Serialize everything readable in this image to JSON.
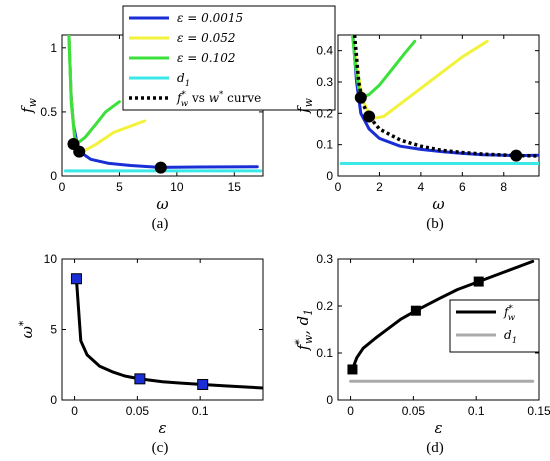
{
  "chart_data": [
    {
      "panel": "(a)",
      "type": "line",
      "xlabel": "ω",
      "ylabel": "f_w",
      "xlim": [
        0,
        17.5
      ],
      "ylim": [
        0,
        1.1
      ],
      "xticks": [
        0,
        5,
        10,
        15
      ],
      "yticks": [
        0,
        0.5,
        1
      ],
      "legend_position": "top-right",
      "legend": [
        {
          "text": "ε = 0.0015",
          "color": "#1a2ed6",
          "style": "solid"
        },
        {
          "text": "ε = 0.052",
          "color": "#f2f23a",
          "style": "solid"
        },
        {
          "text": "ε = 0.102",
          "color": "#3be03b",
          "style": "solid"
        },
        {
          "text": "d1",
          "color": "#3ae8e8",
          "style": "solid"
        },
        {
          "text": "f*w vs w* curve",
          "color": "#000000",
          "style": "dotted"
        }
      ],
      "series": [
        {
          "name": "ε = 0.0015",
          "color": "#1a2ed6",
          "points": [
            [
              0.6,
              1.1
            ],
            [
              0.8,
              0.62
            ],
            [
              1.0,
              0.4
            ],
            [
              1.3,
              0.26
            ],
            [
              1.7,
              0.18
            ],
            [
              2.5,
              0.13
            ],
            [
              4,
              0.1
            ],
            [
              6,
              0.082
            ],
            [
              8.5,
              0.067
            ],
            [
              12,
              0.07
            ],
            [
              17,
              0.072
            ]
          ]
        },
        {
          "name": "ε = 0.052",
          "color": "#f2f23a",
          "points": [
            [
              0.6,
              1.1
            ],
            [
              0.8,
              0.6
            ],
            [
              1.1,
              0.3
            ],
            [
              1.6,
              0.2
            ],
            [
              2,
              0.2
            ],
            [
              3,
              0.25
            ],
            [
              4.5,
              0.34
            ],
            [
              7.2,
              0.43
            ]
          ]
        },
        {
          "name": "ε = 0.102",
          "color": "#3be03b",
          "points": [
            [
              0.6,
              1.1
            ],
            [
              0.8,
              0.58
            ],
            [
              1.1,
              0.3
            ],
            [
              1.4,
              0.26
            ],
            [
              2,
              0.3
            ],
            [
              3,
              0.41
            ],
            [
              3.8,
              0.5
            ],
            [
              5,
              0.58
            ]
          ]
        },
        {
          "name": "d1",
          "color": "#3ae8e8",
          "points": [
            [
              0.3,
              0.04
            ],
            [
              17.3,
              0.04
            ]
          ]
        }
      ],
      "markers": [
        [
          1.0,
          0.25
        ],
        [
          1.5,
          0.19
        ],
        [
          8.6,
          0.065
        ]
      ]
    },
    {
      "panel": "(b)",
      "type": "line",
      "xlabel": "ω",
      "ylabel": "f_w",
      "xlim": [
        0,
        9.7
      ],
      "ylim": [
        0,
        0.45
      ],
      "xticks": [
        0,
        2,
        4,
        6,
        8
      ],
      "yticks": [
        0,
        0.1,
        0.2,
        0.3,
        0.4
      ],
      "series": [
        {
          "name": "ε = 0.0015",
          "color": "#1a2ed6",
          "points": [
            [
              0.72,
              0.45
            ],
            [
              0.9,
              0.3
            ],
            [
              1.1,
              0.2
            ],
            [
              1.5,
              0.15
            ],
            [
              2,
              0.12
            ],
            [
              3,
              0.095
            ],
            [
              4,
              0.085
            ],
            [
              5,
              0.078
            ],
            [
              6,
              0.072
            ],
            [
              7,
              0.068
            ],
            [
              8.6,
              0.065
            ],
            [
              9.7,
              0.066
            ]
          ]
        },
        {
          "name": "ε = 0.052",
          "color": "#f2f23a",
          "points": [
            [
              0.7,
              0.45
            ],
            [
              0.9,
              0.35
            ],
            [
              1.2,
              0.24
            ],
            [
              1.5,
              0.2
            ],
            [
              1.8,
              0.185
            ],
            [
              2.2,
              0.19
            ],
            [
              3,
              0.23
            ],
            [
              4,
              0.28
            ],
            [
              5,
              0.33
            ],
            [
              6,
              0.38
            ],
            [
              7.2,
              0.43
            ]
          ]
        },
        {
          "name": "ε = 0.102",
          "color": "#3be03b",
          "points": [
            [
              0.7,
              0.45
            ],
            [
              0.85,
              0.35
            ],
            [
              1.0,
              0.28
            ],
            [
              1.2,
              0.25
            ],
            [
              1.5,
              0.26
            ],
            [
              2,
              0.29
            ],
            [
              2.6,
              0.34
            ],
            [
              3.2,
              0.39
            ],
            [
              3.7,
              0.43
            ]
          ]
        },
        {
          "name": "d1",
          "color": "#3ae8e8",
          "points": [
            [
              0.15,
              0.04
            ],
            [
              9.7,
              0.04
            ]
          ]
        },
        {
          "name": "f*w vs w* curve",
          "color": "#000000",
          "dashed": true,
          "points": [
            [
              0.8,
              0.45
            ],
            [
              1.0,
              0.3
            ],
            [
              1.2,
              0.23
            ],
            [
              1.5,
              0.19
            ],
            [
              2,
              0.15
            ],
            [
              3,
              0.115
            ],
            [
              4,
              0.095
            ],
            [
              5,
              0.082
            ],
            [
              6,
              0.075
            ],
            [
              7,
              0.07
            ],
            [
              8.6,
              0.065
            ],
            [
              9.7,
              0.064
            ]
          ]
        }
      ],
      "markers": [
        [
          1.1,
          0.25
        ],
        [
          1.5,
          0.19
        ],
        [
          8.6,
          0.065
        ]
      ]
    },
    {
      "panel": "(c)",
      "type": "line",
      "xlabel": "ε",
      "ylabel": "ω*",
      "xlim": [
        -0.01,
        0.15
      ],
      "ylim": [
        0,
        10
      ],
      "xticks": [
        0,
        0.05,
        0.1
      ],
      "yticks": [
        0,
        5,
        10
      ],
      "series": [
        {
          "name": "ω*",
          "color": "#000000",
          "points": [
            [
              0.0015,
              8.6
            ],
            [
              0.005,
              4.2
            ],
            [
              0.01,
              3.2
            ],
            [
              0.02,
              2.4
            ],
            [
              0.03,
              2.0
            ],
            [
              0.04,
              1.7
            ],
            [
              0.052,
              1.5
            ],
            [
              0.07,
              1.3
            ],
            [
              0.085,
              1.2
            ],
            [
              0.102,
              1.1
            ],
            [
              0.12,
              1.0
            ],
            [
              0.15,
              0.85
            ]
          ]
        }
      ],
      "markers": [
        [
          0.0015,
          8.6
        ],
        [
          0.052,
          1.5
        ],
        [
          0.102,
          1.1
        ]
      ]
    },
    {
      "panel": "(d)",
      "type": "line",
      "xlabel": "ε",
      "ylabel": "f*w, d1",
      "xlim": [
        -0.01,
        0.15
      ],
      "ylim": [
        0,
        0.3
      ],
      "xticks": [
        0,
        0.05,
        0.1,
        0.15
      ],
      "yticks": [
        0,
        0.1,
        0.2,
        0.3
      ],
      "legend_position": "bottom-right",
      "legend": [
        {
          "text": "f*w",
          "color": "#000000",
          "style": "solid"
        },
        {
          "text": "d1",
          "color": "#aaaaaa",
          "style": "solid"
        }
      ],
      "series": [
        {
          "name": "f*w",
          "color": "#000000",
          "points": [
            [
              0.0015,
              0.065
            ],
            [
              0.005,
              0.09
            ],
            [
              0.01,
              0.11
            ],
            [
              0.02,
              0.132
            ],
            [
              0.03,
              0.152
            ],
            [
              0.04,
              0.172
            ],
            [
              0.052,
              0.19
            ],
            [
              0.07,
              0.215
            ],
            [
              0.085,
              0.235
            ],
            [
              0.102,
              0.252
            ],
            [
              0.12,
              0.27
            ],
            [
              0.145,
              0.295
            ]
          ]
        },
        {
          "name": "d1",
          "color": "#aaaaaa",
          "points": [
            [
              0.0,
              0.04
            ],
            [
              0.145,
              0.04
            ]
          ]
        }
      ],
      "markers": [
        [
          0.0015,
          0.065
        ],
        [
          0.052,
          0.19
        ],
        [
          0.102,
          0.252
        ]
      ]
    }
  ]
}
